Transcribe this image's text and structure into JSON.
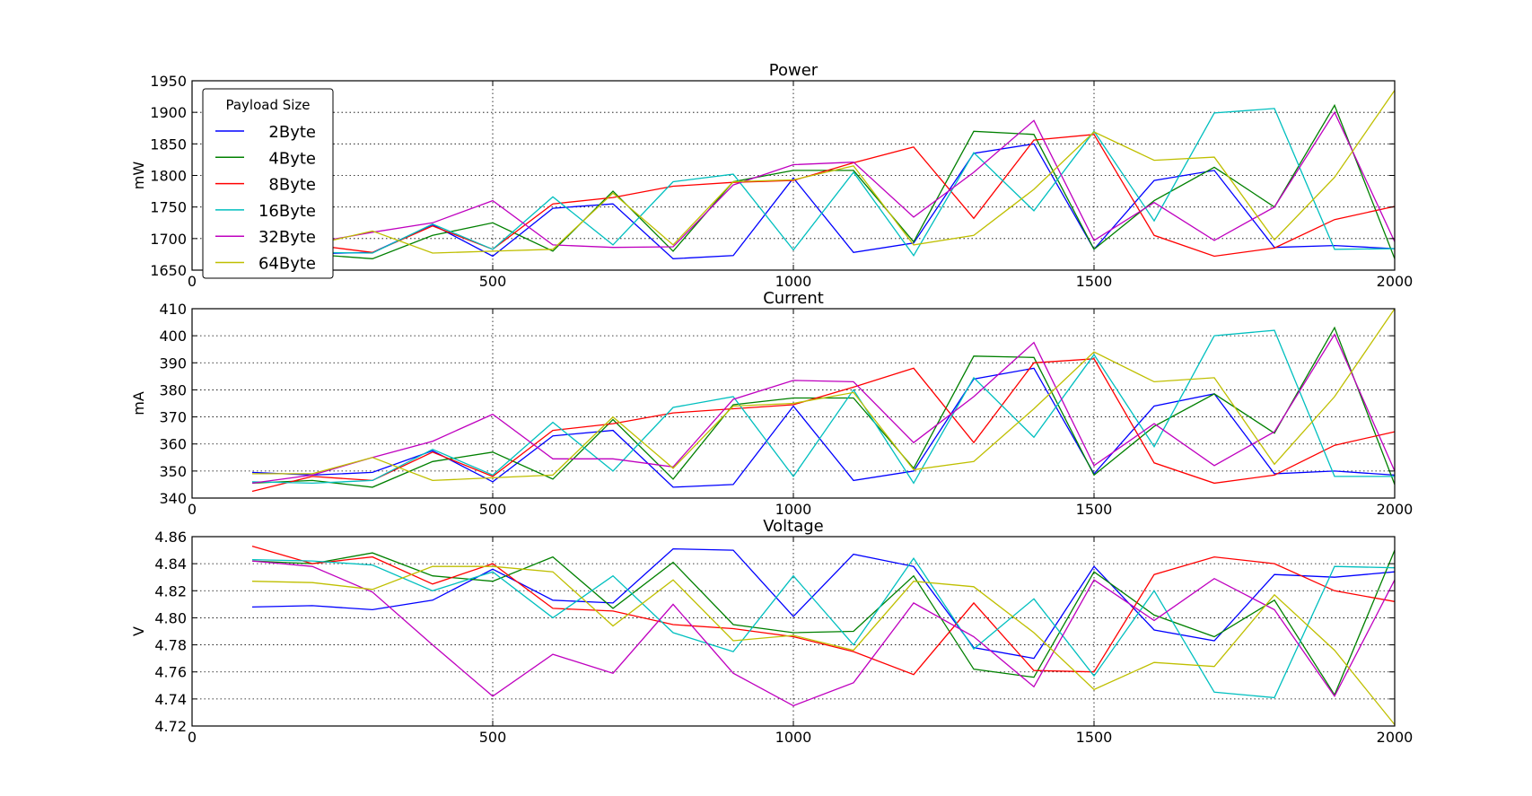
{
  "chart_data": [
    {
      "type": "line",
      "title": "Power",
      "ylabel": "mW",
      "xlim": [
        0,
        2000
      ],
      "ylim": [
        1650,
        1950
      ],
      "xticks": [
        "0",
        "500",
        "1000",
        "1500",
        "2000"
      ],
      "yticks": [
        "1650",
        "1700",
        "1750",
        "1800",
        "1850",
        "1900",
        "1950"
      ],
      "grid": true,
      "legend": {
        "title": "Payload Size",
        "position": "top-left"
      },
      "x": [
        100,
        200,
        300,
        400,
        500,
        600,
        700,
        800,
        900,
        1000,
        1100,
        1200,
        1300,
        1400,
        1500,
        1600,
        1700,
        1800,
        1900,
        2000
      ],
      "series": [
        {
          "name": "2Byte",
          "color": "#0000ff",
          "values": [
            1675,
            1676,
            1678,
            1722,
            1672,
            1748,
            1755,
            1668,
            1673,
            1796,
            1678,
            1693,
            1835,
            1850,
            1683,
            1792,
            1808,
            1686,
            1689,
            1684
          ]
        },
        {
          "name": "4Byte",
          "color": "#008000",
          "values": [
            1677,
            1675,
            1668,
            1705,
            1725,
            1680,
            1775,
            1680,
            1790,
            1808,
            1808,
            1695,
            1870,
            1865,
            1683,
            1760,
            1813,
            1750,
            1911,
            1668
          ]
        },
        {
          "name": "8Byte",
          "color": "#ff0000",
          "values": [
            1672,
            1690,
            1678,
            1720,
            1683,
            1755,
            1765,
            1783,
            1789,
            1792,
            1820,
            1845,
            1732,
            1856,
            1865,
            1705,
            1672,
            1685,
            1730,
            1751
          ]
        },
        {
          "name": "16Byte",
          "color": "#00bfbf",
          "values": [
            1682,
            1678,
            1677,
            1723,
            1683,
            1766,
            1690,
            1790,
            1802,
            1682,
            1805,
            1673,
            1836,
            1744,
            1870,
            1728,
            1899,
            1906,
            1683,
            1684
          ]
        },
        {
          "name": "32Byte",
          "color": "#bf00bf",
          "values": [
            1684,
            1693,
            1710,
            1725,
            1760,
            1690,
            1686,
            1687,
            1785,
            1817,
            1821,
            1734,
            1805,
            1887,
            1697,
            1757,
            1697,
            1750,
            1900,
            1695
          ]
        },
        {
          "name": "64Byte",
          "color": "#bfbf00",
          "values": [
            1686,
            1690,
            1712,
            1677,
            1680,
            1683,
            1772,
            1690,
            1790,
            1793,
            1815,
            1690,
            1705,
            1778,
            1869,
            1824,
            1829,
            1698,
            1797,
            1935
          ]
        }
      ]
    },
    {
      "type": "line",
      "title": "Current",
      "ylabel": "mA",
      "xlim": [
        0,
        2000
      ],
      "ylim": [
        340,
        410
      ],
      "xticks": [
        "0",
        "500",
        "1000",
        "1500",
        "2000"
      ],
      "yticks": [
        "340",
        "350",
        "360",
        "370",
        "380",
        "390",
        "400",
        "410"
      ],
      "grid": true,
      "x": [
        100,
        200,
        300,
        400,
        500,
        600,
        700,
        800,
        900,
        1000,
        1100,
        1200,
        1300,
        1400,
        1500,
        1600,
        1700,
        1800,
        1900,
        2000
      ],
      "series": [
        {
          "name": "2Byte",
          "color": "#0000ff",
          "values": [
            349.5,
            348.5,
            349.5,
            357.5,
            346.0,
            363.0,
            365.0,
            344.0,
            345.0,
            374.0,
            346.5,
            350.0,
            384.0,
            388.0,
            349.0,
            374.0,
            378.5,
            349.0,
            350.0,
            348.5
          ]
        },
        {
          "name": "4Byte",
          "color": "#008000",
          "values": [
            345.5,
            346.5,
            344.0,
            353.5,
            357.0,
            347.0,
            369.0,
            347.0,
            374.5,
            377.0,
            377.0,
            351.0,
            392.5,
            392.0,
            348.5,
            366.5,
            378.5,
            364.0,
            403.0,
            345.0
          ]
        },
        {
          "name": "8Byte",
          "color": "#ff0000",
          "values": [
            342.5,
            348.0,
            346.5,
            357.0,
            348.0,
            365.0,
            367.5,
            371.5,
            373.0,
            374.5,
            381.0,
            388.0,
            360.5,
            390.0,
            391.5,
            353.0,
            345.5,
            348.5,
            359.5,
            364.5
          ]
        },
        {
          "name": "16Byte",
          "color": "#00bfbf",
          "values": [
            346.0,
            345.5,
            346.5,
            358.0,
            348.5,
            368.0,
            350.0,
            373.5,
            377.5,
            348.0,
            380.0,
            345.5,
            384.5,
            362.5,
            393.0,
            359.0,
            400.0,
            402.0,
            348.0,
            348.0
          ]
        },
        {
          "name": "32Byte",
          "color": "#bf00bf",
          "values": [
            345.5,
            348.5,
            355.0,
            361.0,
            371.0,
            354.5,
            354.5,
            351.5,
            376.5,
            383.5,
            383.0,
            360.5,
            377.5,
            397.5,
            352.0,
            367.5,
            352.0,
            364.5,
            400.5,
            350.0
          ]
        },
        {
          "name": "64Byte",
          "color": "#bfbf00",
          "values": [
            349.0,
            349.0,
            355.0,
            346.5,
            347.5,
            348.5,
            370.0,
            351.0,
            374.0,
            375.0,
            379.0,
            350.5,
            353.5,
            373.0,
            394.0,
            383.0,
            384.5,
            352.5,
            377.5,
            410.0
          ]
        }
      ]
    },
    {
      "type": "line",
      "title": "Voltage",
      "ylabel": "V",
      "xlim": [
        0,
        2000
      ],
      "ylim": [
        4.72,
        4.86
      ],
      "xticks": [
        "0",
        "500",
        "1000",
        "1500",
        "2000"
      ],
      "yticks": [
        "4.72",
        "4.74",
        "4.76",
        "4.78",
        "4.80",
        "4.82",
        "4.84",
        "4.86"
      ],
      "grid": true,
      "x": [
        100,
        200,
        300,
        400,
        500,
        600,
        700,
        800,
        900,
        1000,
        1100,
        1200,
        1300,
        1400,
        1500,
        1600,
        1700,
        1800,
        1900,
        2000
      ],
      "series": [
        {
          "name": "2Byte",
          "color": "#0000ff",
          "values": [
            4.808,
            4.809,
            4.806,
            4.813,
            4.836,
            4.813,
            4.811,
            4.851,
            4.85,
            4.801,
            4.847,
            4.838,
            4.778,
            4.77,
            4.838,
            4.791,
            4.783,
            4.832,
            4.83,
            4.834
          ]
        },
        {
          "name": "4Byte",
          "color": "#008000",
          "values": [
            4.842,
            4.84,
            4.848,
            4.831,
            4.827,
            4.845,
            4.807,
            4.841,
            4.795,
            4.789,
            4.79,
            4.831,
            4.762,
            4.756,
            4.834,
            4.802,
            4.786,
            4.813,
            4.743,
            4.85
          ]
        },
        {
          "name": "8Byte",
          "color": "#ff0000",
          "values": [
            4.853,
            4.84,
            4.845,
            4.825,
            4.84,
            4.807,
            4.805,
            4.795,
            4.792,
            4.786,
            4.775,
            4.758,
            4.811,
            4.761,
            4.76,
            4.832,
            4.845,
            4.84,
            4.82,
            4.812
          ]
        },
        {
          "name": "16Byte",
          "color": "#00bfbf",
          "values": [
            4.843,
            4.842,
            4.839,
            4.82,
            4.834,
            4.8,
            4.831,
            4.789,
            4.775,
            4.831,
            4.78,
            4.844,
            4.777,
            4.814,
            4.757,
            4.82,
            4.745,
            4.741,
            4.838,
            4.837
          ]
        },
        {
          "name": "32Byte",
          "color": "#bf00bf",
          "values": [
            4.842,
            4.838,
            4.819,
            4.78,
            4.742,
            4.773,
            4.759,
            4.81,
            4.759,
            4.735,
            4.752,
            4.811,
            4.786,
            4.749,
            4.828,
            4.798,
            4.829,
            4.806,
            4.742,
            4.828
          ]
        },
        {
          "name": "64Byte",
          "color": "#bfbf00",
          "values": [
            4.827,
            4.826,
            4.821,
            4.838,
            4.838,
            4.834,
            4.794,
            4.828,
            4.783,
            4.787,
            4.776,
            4.827,
            4.823,
            4.789,
            4.747,
            4.767,
            4.764,
            4.817,
            4.776,
            4.721
          ]
        }
      ]
    }
  ]
}
